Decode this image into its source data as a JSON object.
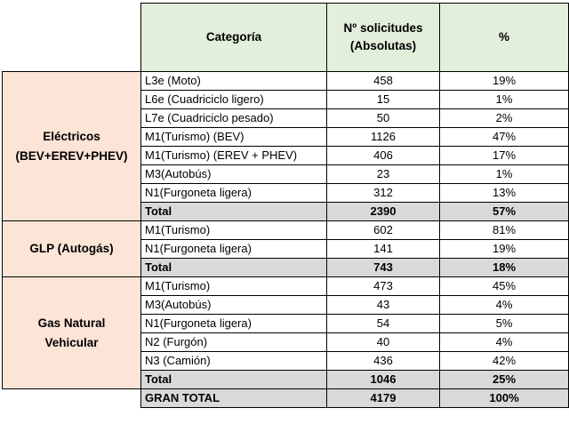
{
  "header": {
    "categoria": "Categoría",
    "solicitudes_line1": "Nº solicitudes",
    "solicitudes_line2": "(Absolutas)",
    "percent": "%"
  },
  "groups": {
    "electricos": {
      "label_line1": "Eléctricos",
      "label_line2": "(BEV+EREV+PHEV)",
      "rows": [
        {
          "category": "L3e (Moto)",
          "absolute": "458",
          "percent": "19%"
        },
        {
          "category": "L6e (Cuadriciclo ligero)",
          "absolute": "15",
          "percent": "1%"
        },
        {
          "category": "L7e (Cuadriciclo pesado)",
          "absolute": "50",
          "percent": "2%"
        },
        {
          "category": "M1(Turismo) (BEV)",
          "absolute": "1126",
          "percent": "47%"
        },
        {
          "category": "M1(Turismo) (EREV + PHEV)",
          "absolute": "406",
          "percent": "17%"
        },
        {
          "category": "M3(Autobús)",
          "absolute": "23",
          "percent": "1%"
        },
        {
          "category": "N1(Furgoneta ligera)",
          "absolute": "312",
          "percent": "13%"
        }
      ],
      "total": {
        "label": "Total",
        "absolute": "2390",
        "percent": "57%"
      }
    },
    "glp": {
      "label": "GLP (Autogás)",
      "rows": [
        {
          "category": "M1(Turismo)",
          "absolute": "602",
          "percent": "81%"
        },
        {
          "category": "N1(Furgoneta ligera)",
          "absolute": "141",
          "percent": "19%"
        }
      ],
      "total": {
        "label": "Total",
        "absolute": "743",
        "percent": "18%"
      }
    },
    "gnv": {
      "label_line1": "Gas Natural",
      "label_line2": "Vehicular",
      "rows": [
        {
          "category": "M1(Turismo)",
          "absolute": "473",
          "percent": "45%"
        },
        {
          "category": "M3(Autobús)",
          "absolute": "43",
          "percent": "4%"
        },
        {
          "category": "N1(Furgoneta ligera)",
          "absolute": "54",
          "percent": "5%"
        },
        {
          "category": "N2 (Furgón)",
          "absolute": "40",
          "percent": "4%"
        },
        {
          "category": "N3 (Camión)",
          "absolute": "436",
          "percent": "42%"
        }
      ],
      "total": {
        "label": "Total",
        "absolute": "1046",
        "percent": "25%"
      }
    }
  },
  "grand_total": {
    "label": "GRAN TOTAL",
    "absolute": "4179",
    "percent": "100%"
  },
  "colors": {
    "header_bg": "#e2efda",
    "group_bg": "#fce4d6",
    "total_bg": "#d9d9d9"
  }
}
